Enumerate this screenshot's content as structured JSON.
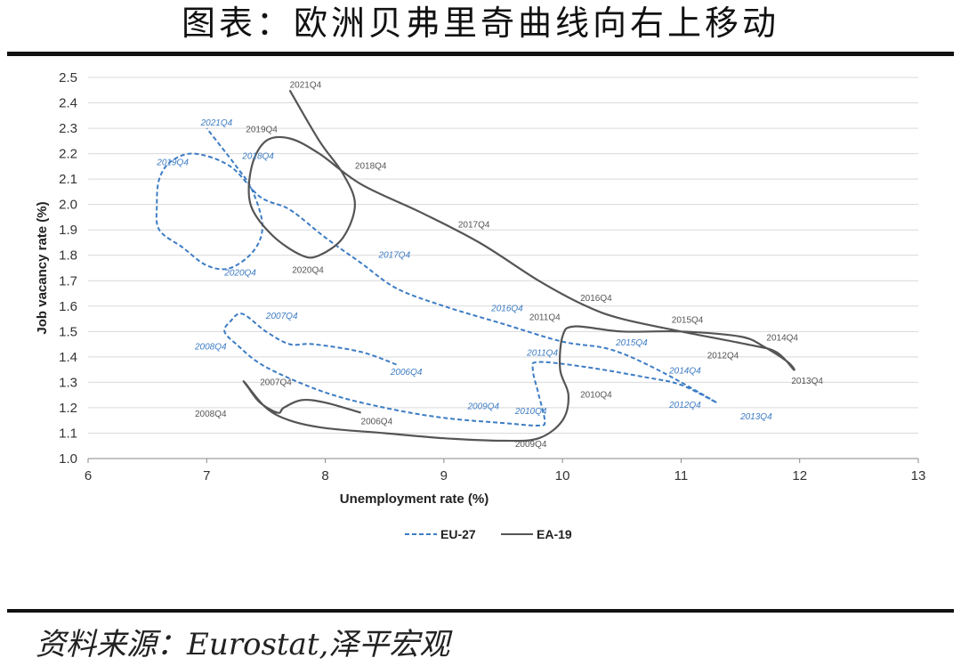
{
  "title": "图表：欧洲贝弗里奇曲线向右上移动",
  "source": "资料来源：Eurostat,泽平宏观",
  "colors": {
    "eu27": "#3d7cc4",
    "ea19": "#555555",
    "grid": "#d9d9d9"
  },
  "chart_data": {
    "type": "line",
    "title": "图表：欧洲贝弗里奇曲线向右上移动",
    "xlabel": "Unemployment rate (%)",
    "ylabel": "Job vacancy rate (%)",
    "xlim": [
      6,
      13
    ],
    "ylim": [
      1.0,
      2.5
    ],
    "xticks": [
      6,
      7,
      8,
      9,
      10,
      11,
      12,
      13
    ],
    "xtick_labels": [
      "6",
      "7",
      "8",
      "9",
      "10",
      "11",
      "12",
      "13"
    ],
    "yticks": [
      1.0,
      1.1,
      1.2,
      1.3,
      1.4,
      1.5,
      1.6,
      1.7,
      1.8,
      1.9,
      2.0,
      2.1,
      2.2,
      2.3,
      2.4,
      2.5
    ],
    "ytick_labels": [
      "1.0",
      "1.1",
      "1.2",
      "1.3",
      "1.4",
      "1.5",
      "1.6",
      "1.7",
      "1.8",
      "1.9",
      "2.0",
      "2.1",
      "2.2",
      "2.3",
      "2.4",
      "2.5"
    ],
    "grid": "horizontal",
    "legend_position": "bottom-left",
    "series": [
      {
        "name": "EU-27",
        "style": "dashed",
        "points": [
          [
            8.6,
            1.37
          ],
          [
            8.3,
            1.42
          ],
          [
            7.9,
            1.45
          ],
          [
            7.7,
            1.45
          ],
          [
            7.5,
            1.5
          ],
          [
            7.3,
            1.57
          ],
          [
            7.2,
            1.54
          ],
          [
            7.15,
            1.5
          ],
          [
            7.25,
            1.45
          ],
          [
            7.5,
            1.36
          ],
          [
            8.0,
            1.26
          ],
          [
            8.5,
            1.2
          ],
          [
            9.0,
            1.16
          ],
          [
            9.5,
            1.14
          ],
          [
            9.8,
            1.13
          ],
          [
            9.85,
            1.15
          ],
          [
            9.8,
            1.25
          ],
          [
            9.75,
            1.35
          ],
          [
            9.8,
            1.38
          ],
          [
            10.2,
            1.36
          ],
          [
            10.7,
            1.32
          ],
          [
            11.0,
            1.29
          ],
          [
            11.3,
            1.22
          ],
          [
            10.8,
            1.35
          ],
          [
            10.4,
            1.43
          ],
          [
            10.0,
            1.46
          ],
          [
            9.5,
            1.53
          ],
          [
            9.0,
            1.6
          ],
          [
            8.6,
            1.67
          ],
          [
            8.3,
            1.77
          ],
          [
            8.0,
            1.87
          ],
          [
            7.7,
            1.98
          ],
          [
            7.45,
            2.03
          ],
          [
            7.2,
            2.15
          ],
          [
            6.9,
            2.2
          ],
          [
            6.7,
            2.17
          ],
          [
            6.6,
            2.1
          ],
          [
            6.58,
            2.0
          ],
          [
            6.6,
            1.9
          ],
          [
            6.8,
            1.83
          ],
          [
            7.0,
            1.76
          ],
          [
            7.2,
            1.75
          ],
          [
            7.4,
            1.82
          ],
          [
            7.47,
            1.92
          ],
          [
            7.38,
            2.06
          ],
          [
            7.25,
            2.15
          ],
          [
            7.0,
            2.3
          ]
        ],
        "labels": [
          {
            "text": "2006Q4",
            "x": 8.55,
            "y": 1.33
          },
          {
            "text": "2007Q4",
            "x": 7.5,
            "y": 1.55
          },
          {
            "text": "2008Q4",
            "x": 6.9,
            "y": 1.43
          },
          {
            "text": "2009Q4",
            "x": 9.2,
            "y": 1.195
          },
          {
            "text": "2010Q4",
            "x": 9.6,
            "y": 1.175
          },
          {
            "text": "2011Q4",
            "x": 9.7,
            "y": 1.405
          },
          {
            "text": "2012Q4",
            "x": 10.9,
            "y": 1.2
          },
          {
            "text": "2013Q4",
            "x": 11.5,
            "y": 1.155
          },
          {
            "text": "2014Q4",
            "x": 10.9,
            "y": 1.335
          },
          {
            "text": "2015Q4",
            "x": 10.45,
            "y": 1.445
          },
          {
            "text": "2016Q4",
            "x": 9.4,
            "y": 1.58
          },
          {
            "text": "2017Q4",
            "x": 8.45,
            "y": 1.79
          },
          {
            "text": "2018Q4",
            "x": 7.3,
            "y": 2.18
          },
          {
            "text": "2019Q4",
            "x": 6.58,
            "y": 2.155
          },
          {
            "text": "2020Q4",
            "x": 7.15,
            "y": 1.72
          },
          {
            "text": "2021Q4",
            "x": 6.95,
            "y": 2.31
          }
        ]
      },
      {
        "name": "EA-19",
        "style": "solid",
        "points": [
          [
            8.3,
            1.18
          ],
          [
            8.0,
            1.22
          ],
          [
            7.8,
            1.23
          ],
          [
            7.65,
            1.2
          ],
          [
            7.6,
            1.18
          ],
          [
            7.45,
            1.22
          ],
          [
            7.35,
            1.28
          ],
          [
            7.32,
            1.3
          ],
          [
            7.5,
            1.2
          ],
          [
            7.7,
            1.15
          ],
          [
            8.0,
            1.12
          ],
          [
            8.5,
            1.1
          ],
          [
            9.0,
            1.08
          ],
          [
            9.5,
            1.07
          ],
          [
            9.8,
            1.08
          ],
          [
            10.0,
            1.15
          ],
          [
            10.05,
            1.25
          ],
          [
            9.98,
            1.35
          ],
          [
            10.0,
            1.48
          ],
          [
            10.1,
            1.52
          ],
          [
            10.5,
            1.5
          ],
          [
            11.0,
            1.5
          ],
          [
            11.5,
            1.48
          ],
          [
            11.7,
            1.44
          ],
          [
            11.9,
            1.38
          ],
          [
            11.95,
            1.35
          ],
          [
            11.8,
            1.42
          ],
          [
            11.55,
            1.45
          ],
          [
            11.0,
            1.5
          ],
          [
            10.5,
            1.55
          ],
          [
            10.2,
            1.6
          ],
          [
            9.8,
            1.7
          ],
          [
            9.3,
            1.85
          ],
          [
            8.8,
            1.97
          ],
          [
            8.3,
            2.08
          ],
          [
            7.95,
            2.2
          ],
          [
            7.7,
            2.26
          ],
          [
            7.5,
            2.25
          ],
          [
            7.38,
            2.15
          ],
          [
            7.37,
            2.0
          ],
          [
            7.55,
            1.88
          ],
          [
            7.8,
            1.8
          ],
          [
            7.95,
            1.8
          ],
          [
            8.15,
            1.87
          ],
          [
            8.25,
            2.0
          ],
          [
            8.15,
            2.12
          ],
          [
            7.95,
            2.25
          ],
          [
            7.7,
            2.45
          ]
        ],
        "labels": [
          {
            "text": "2006Q4",
            "x": 8.3,
            "y": 1.135
          },
          {
            "text": "2007Q4",
            "x": 7.45,
            "y": 1.29
          },
          {
            "text": "2008Q4",
            "x": 6.9,
            "y": 1.165
          },
          {
            "text": "2009Q4",
            "x": 9.6,
            "y": 1.045
          },
          {
            "text": "2010Q4",
            "x": 10.15,
            "y": 1.24
          },
          {
            "text": "2011Q4",
            "x": 9.72,
            "y": 1.545
          },
          {
            "text": "2012Q4",
            "x": 11.22,
            "y": 1.395
          },
          {
            "text": "2013Q4",
            "x": 11.93,
            "y": 1.295
          },
          {
            "text": "2014Q4",
            "x": 11.72,
            "y": 1.465
          },
          {
            "text": "2015Q4",
            "x": 10.92,
            "y": 1.535
          },
          {
            "text": "2016Q4",
            "x": 10.15,
            "y": 1.62
          },
          {
            "text": "2017Q4",
            "x": 9.12,
            "y": 1.91
          },
          {
            "text": "2018Q4",
            "x": 8.25,
            "y": 2.14
          },
          {
            "text": "2019Q4",
            "x": 7.33,
            "y": 2.285
          },
          {
            "text": "2020Q4",
            "x": 7.72,
            "y": 1.73
          },
          {
            "text": "2021Q4",
            "x": 7.7,
            "y": 2.46
          }
        ]
      }
    ]
  }
}
